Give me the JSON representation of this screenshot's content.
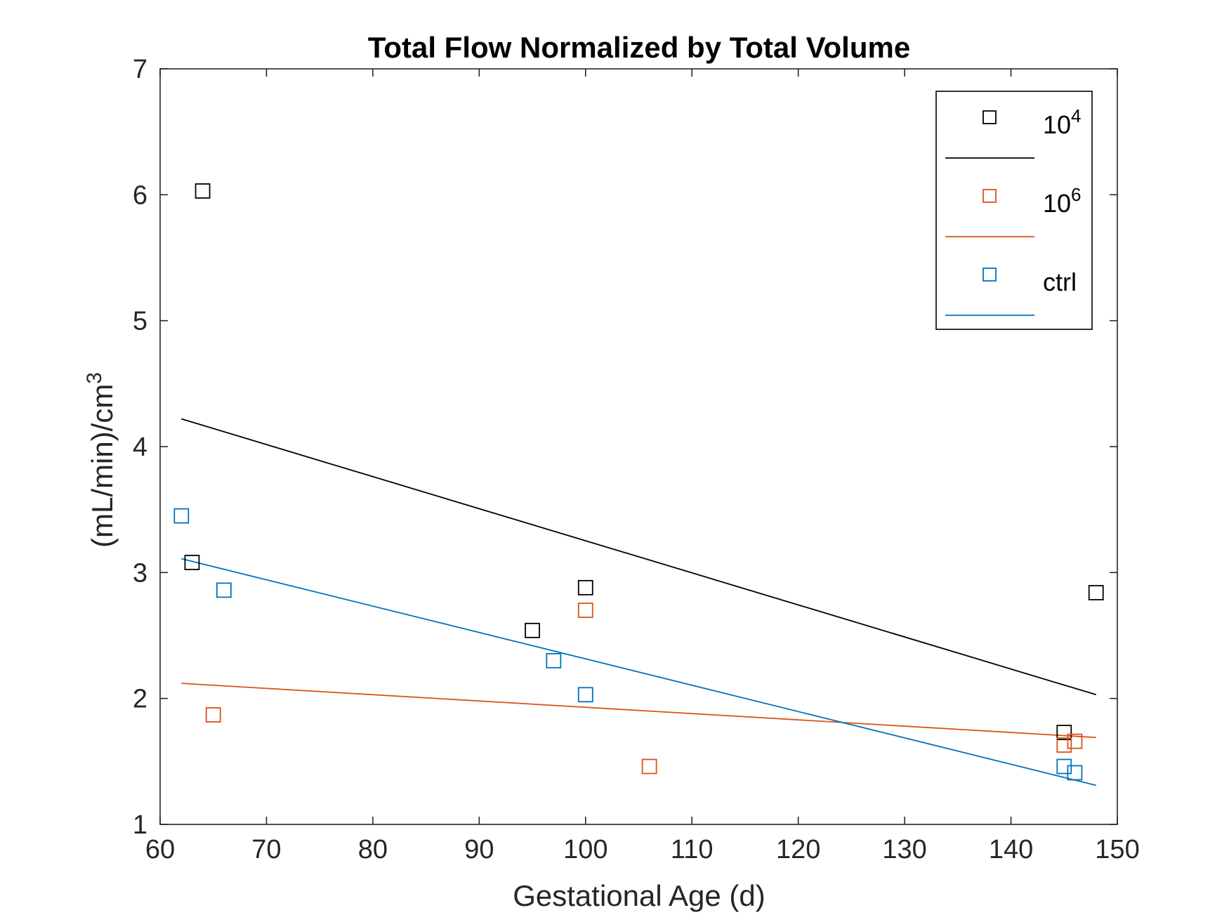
{
  "chart_data": {
    "type": "scatter",
    "title": "Total Flow Normalized by Total Volume",
    "xlabel": "Gestational Age (d)",
    "ylabel": "(mL/min)/cm",
    "ylabel_superscript": "3",
    "xlim": [
      60,
      150
    ],
    "ylim": [
      1,
      7
    ],
    "xticks": [
      60,
      70,
      80,
      90,
      100,
      110,
      120,
      130,
      140,
      150
    ],
    "yticks": [
      1,
      2,
      3,
      4,
      5,
      6,
      7
    ],
    "grid": false,
    "legend_position": "top-right",
    "series": [
      {
        "name": "10^4",
        "legend_base": "10",
        "legend_exp": "4",
        "color": "#000000",
        "points": [
          {
            "x": 64,
            "y": 6.03
          },
          {
            "x": 63,
            "y": 3.08
          },
          {
            "x": 95,
            "y": 2.54
          },
          {
            "x": 100,
            "y": 2.88
          },
          {
            "x": 145,
            "y": 1.73
          },
          {
            "x": 148,
            "y": 2.84
          }
        ],
        "fit": {
          "x": [
            62,
            148
          ],
          "y": [
            4.22,
            2.03
          ]
        }
      },
      {
        "name": "10^6",
        "legend_base": "10",
        "legend_exp": "6",
        "color": "#D95319",
        "points": [
          {
            "x": 65,
            "y": 1.87
          },
          {
            "x": 100,
            "y": 2.7
          },
          {
            "x": 106,
            "y": 1.46
          },
          {
            "x": 145,
            "y": 1.63
          },
          {
            "x": 146,
            "y": 1.66
          }
        ],
        "fit": {
          "x": [
            62,
            148
          ],
          "y": [
            2.12,
            1.69
          ]
        }
      },
      {
        "name": "ctrl",
        "legend_base": "ctrl",
        "legend_exp": "",
        "color": "#0072BD",
        "points": [
          {
            "x": 62,
            "y": 3.45
          },
          {
            "x": 66,
            "y": 2.86
          },
          {
            "x": 97,
            "y": 2.3
          },
          {
            "x": 100,
            "y": 2.03
          },
          {
            "x": 145,
            "y": 1.46
          },
          {
            "x": 146,
            "y": 1.41
          }
        ],
        "fit": {
          "x": [
            62,
            148
          ],
          "y": [
            3.11,
            1.31
          ]
        }
      }
    ]
  }
}
